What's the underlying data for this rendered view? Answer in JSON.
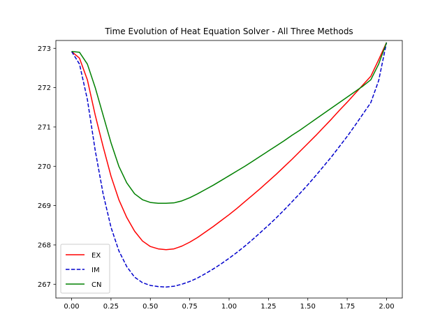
{
  "chart_data": {
    "type": "line",
    "title": "Time Evolution of Heat Equation Solver - All Three Methods",
    "xlabel": "",
    "ylabel": "",
    "xlim": [
      -0.1,
      2.1
    ],
    "ylim": [
      266.65,
      273.2
    ],
    "xticks": [
      0.0,
      0.25,
      0.5,
      0.75,
      1.0,
      1.25,
      1.5,
      1.75,
      2.0
    ],
    "xtick_labels": [
      "0.00",
      "0.25",
      "0.50",
      "0.75",
      "1.00",
      "1.25",
      "1.50",
      "1.75",
      "2.00"
    ],
    "yticks": [
      267,
      268,
      269,
      270,
      271,
      272,
      273
    ],
    "ytick_labels": [
      "267",
      "268",
      "269",
      "270",
      "271",
      "272",
      "273"
    ],
    "grid": false,
    "legend_position": "lower-left",
    "series": [
      {
        "name": "EX",
        "color": "#ff0000",
        "style": "solid",
        "x": [
          0.0,
          0.05,
          0.1,
          0.15,
          0.2,
          0.25,
          0.3,
          0.35,
          0.4,
          0.45,
          0.5,
          0.55,
          0.6,
          0.65,
          0.7,
          0.75,
          0.8,
          0.85,
          0.9,
          0.95,
          1.0,
          1.05,
          1.1,
          1.15,
          1.2,
          1.25,
          1.3,
          1.35,
          1.4,
          1.45,
          1.5,
          1.55,
          1.6,
          1.65,
          1.7,
          1.75,
          1.8,
          1.85,
          1.9,
          1.95,
          2.0
        ],
        "y": [
          272.92,
          272.75,
          272.2,
          271.3,
          270.5,
          269.75,
          269.15,
          268.7,
          268.35,
          268.1,
          267.96,
          267.9,
          267.88,
          267.9,
          267.97,
          268.07,
          268.19,
          268.33,
          268.47,
          268.62,
          268.77,
          268.93,
          269.1,
          269.27,
          269.44,
          269.62,
          269.8,
          269.99,
          270.18,
          270.38,
          270.58,
          270.78,
          270.99,
          271.2,
          271.42,
          271.63,
          271.85,
          272.07,
          272.29,
          272.71,
          273.15
        ]
      },
      {
        "name": "IM",
        "color": "#0000cc",
        "style": "dashed",
        "x": [
          0.0,
          0.05,
          0.1,
          0.15,
          0.2,
          0.25,
          0.3,
          0.35,
          0.4,
          0.45,
          0.5,
          0.55,
          0.6,
          0.65,
          0.7,
          0.75,
          0.8,
          0.85,
          0.9,
          0.95,
          1.0,
          1.05,
          1.1,
          1.15,
          1.2,
          1.25,
          1.3,
          1.35,
          1.4,
          1.45,
          1.5,
          1.55,
          1.6,
          1.65,
          1.7,
          1.75,
          1.8,
          1.85,
          1.9,
          1.95,
          2.0
        ],
        "y": [
          272.92,
          272.6,
          271.7,
          270.4,
          269.3,
          268.45,
          267.85,
          267.45,
          267.18,
          267.04,
          266.97,
          266.94,
          266.93,
          266.95,
          267.0,
          267.07,
          267.16,
          267.27,
          267.39,
          267.52,
          267.66,
          267.81,
          267.97,
          268.14,
          268.32,
          268.5,
          268.69,
          268.89,
          269.1,
          269.31,
          269.53,
          269.76,
          270.0,
          270.24,
          270.5,
          270.76,
          271.04,
          271.33,
          271.62,
          272.18,
          273.15
        ]
      },
      {
        "name": "CN",
        "color": "#008000",
        "style": "solid",
        "x": [
          0.0,
          0.05,
          0.1,
          0.15,
          0.2,
          0.25,
          0.3,
          0.35,
          0.4,
          0.45,
          0.5,
          0.55,
          0.6,
          0.65,
          0.7,
          0.75,
          0.8,
          0.85,
          0.9,
          0.95,
          1.0,
          1.05,
          1.1,
          1.15,
          1.2,
          1.25,
          1.3,
          1.35,
          1.4,
          1.45,
          1.5,
          1.55,
          1.6,
          1.65,
          1.7,
          1.75,
          1.8,
          1.85,
          1.9,
          1.95,
          2.0
        ],
        "y": [
          272.92,
          272.9,
          272.6,
          272.0,
          271.3,
          270.6,
          270.0,
          269.58,
          269.3,
          269.15,
          269.08,
          269.06,
          269.06,
          269.07,
          269.12,
          269.2,
          269.3,
          269.41,
          269.52,
          269.64,
          269.76,
          269.88,
          270.0,
          270.13,
          270.26,
          270.39,
          270.52,
          270.65,
          270.79,
          270.92,
          271.06,
          271.2,
          271.34,
          271.48,
          271.62,
          271.76,
          271.9,
          272.04,
          272.2,
          272.6,
          273.15
        ]
      }
    ]
  }
}
